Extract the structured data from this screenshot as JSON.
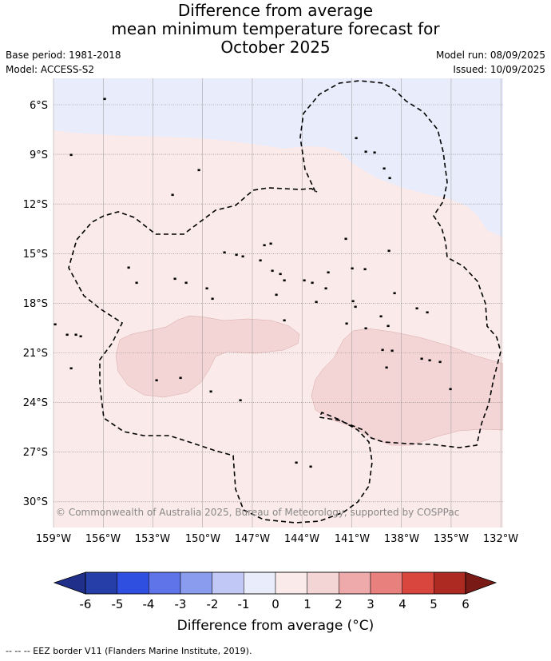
{
  "title_lines": [
    "Difference from average",
    "mean minimum temperature forecast for",
    "October 2025"
  ],
  "meta": {
    "base_period": "Base period: 1981-2018",
    "model": "Model: ACCESS-S2",
    "model_run": "Model run: 08/09/2025",
    "issued": "Issued: 10/09/2025"
  },
  "map": {
    "lat_labels": [
      "6°S",
      "9°S",
      "12°S",
      "15°S",
      "18°S",
      "21°S",
      "24°S",
      "27°S",
      "30°S"
    ],
    "lon_labels": [
      "159°W",
      "156°W",
      "153°W",
      "150°W",
      "147°W",
      "144°W",
      "141°W",
      "138°W",
      "135°W",
      "132°W"
    ],
    "lon_range": [
      -159,
      -132
    ],
    "lat_range": [
      -4.5,
      -31.5
    ],
    "colors": {
      "neg_-1_0": "#e9ecfb",
      "pos_0_1": "#fbeaea",
      "pos_1_2": "#f3d5d5",
      "grid": "#999999"
    },
    "copyright": "© Commonwealth of Australia 2025, Bureau of Meteorology, supported by COSPPac"
  },
  "colorbar": {
    "ticks": [
      "-6",
      "-5",
      "-4",
      "-3",
      "-2",
      "-1",
      "0",
      "1",
      "2",
      "3",
      "4",
      "5",
      "6"
    ],
    "segment_colors": [
      "#263ea8",
      "#2f4fe0",
      "#5f74e8",
      "#8a9cee",
      "#c2c8f5",
      "#e9ecfb",
      "#fbeaea",
      "#f3d5d5",
      "#eeaaaa",
      "#e8817d",
      "#d9463e",
      "#ad2a22"
    ],
    "under_color": "#1f2f8a",
    "over_color": "#7a1a16",
    "label": "Difference from average (°C)"
  },
  "footer": "--  --  -- EEZ border V11 (Flanders Marine Institute, 2019)."
}
